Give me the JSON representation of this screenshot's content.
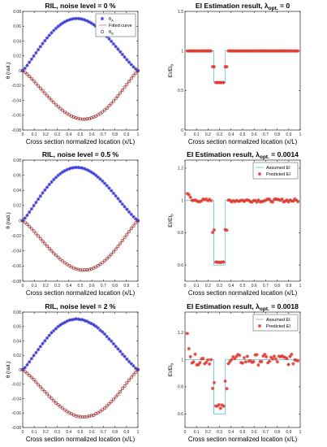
{
  "chart_data": [
    {
      "type": "scatter",
      "title": "RIL, noise level = 0 %",
      "xlabel": "Cross section normalized location (x/L)",
      "ylabel": "θ (rad.)",
      "xlim": [
        0,
        1
      ],
      "ylim": [
        -0.08,
        0.08
      ],
      "xticks": [
        "0",
        "0.1",
        "0.2",
        "0.3",
        "0.4",
        "0.5",
        "0.6",
        "0.7",
        "0.8",
        "0.9",
        "1"
      ],
      "yticks": [
        "-0.08",
        "-0.06",
        "-0.04",
        "-0.02",
        "0",
        "0.02",
        "0.04",
        "0.06",
        "0.08"
      ],
      "legend": {
        "position": "top-right",
        "entries": [
          "θA",
          "Fitted curve",
          "θB"
        ]
      },
      "noise": 0,
      "series": [
        {
          "name": "θA",
          "marker": "star",
          "color": "#3b3bd6",
          "peak_x": 0.42,
          "peak_y": 0.07
        },
        {
          "name": "Fitted curve",
          "marker": "line",
          "color": "#d9534f"
        },
        {
          "name": "θB",
          "marker": "circle",
          "color": "#8b2b2b",
          "peak_x": 0.58,
          "peak_y": -0.065
        }
      ]
    },
    {
      "type": "line",
      "title": "EI Estimation result, λopt. = 0",
      "xlabel": "Cross section normalized location (x/L)",
      "ylabel": "EI/EI0",
      "xlim": [
        0,
        1
      ],
      "ylim": [
        0,
        1.5
      ],
      "xticks": [
        "0",
        "0.1",
        "0.2",
        "0.3",
        "0.4",
        "0.5",
        "0.6",
        "0.7",
        "0.8",
        "0.9",
        "1"
      ],
      "yticks": [
        "0",
        "0.5",
        "1",
        "1.5"
      ],
      "legend": null,
      "assumed_ei": {
        "x": [
          0,
          0.25,
          0.25,
          0.35,
          0.35,
          1
        ],
        "y": [
          1,
          1,
          0.6,
          0.6,
          1,
          1
        ]
      },
      "predicted_ei": {
        "damage_start": 0.25,
        "damage_end": 0.35,
        "damage_level": 0.6,
        "noise": 0
      }
    },
    {
      "type": "scatter",
      "title": "RIL, noise level = 0.5 %",
      "xlabel": "Cross section normalized location (x/L)",
      "ylabel": "θ (rad.)",
      "xlim": [
        0,
        1
      ],
      "ylim": [
        -0.08,
        0.08
      ],
      "xticks": [
        "0",
        "0.1",
        "0.2",
        "0.3",
        "0.4",
        "0.5",
        "0.6",
        "0.7",
        "0.8",
        "0.9",
        "1"
      ],
      "yticks": [
        "-0.08",
        "-0.06",
        "-0.04",
        "-0.02",
        "0",
        "0.02",
        "0.04",
        "0.06",
        "0.08"
      ],
      "legend": null,
      "noise": 0.5,
      "series": [
        {
          "name": "θA",
          "marker": "star",
          "color": "#3b3bd6",
          "peak_x": 0.42,
          "peak_y": 0.07
        },
        {
          "name": "Fitted curve",
          "marker": "line",
          "color": "#d9534f"
        },
        {
          "name": "θB",
          "marker": "circle",
          "color": "#8b2b2b",
          "peak_x": 0.58,
          "peak_y": -0.065
        }
      ]
    },
    {
      "type": "line",
      "title": "EI Estimation result, λopt. = 0.0014",
      "xlabel": "Cross section normalized location (x/L)",
      "ylabel": "EI/EI0",
      "xlim": [
        0,
        1
      ],
      "ylim": [
        0.5,
        1.25
      ],
      "xticks": [
        "0",
        "0.1",
        "0.2",
        "0.3",
        "0.4",
        "0.5",
        "0.6",
        "0.7",
        "0.8",
        "0.9",
        "1"
      ],
      "yticks": [
        "0.6",
        "0.8",
        "1",
        "1.2"
      ],
      "legend": {
        "position": "top-right",
        "entries": [
          "Assumed EI",
          "Predicted EI"
        ]
      },
      "assumed_ei": {
        "x": [
          0,
          0.25,
          0.25,
          0.35,
          0.35,
          1
        ],
        "y": [
          1,
          1,
          0.6,
          0.6,
          1,
          1
        ]
      },
      "predicted_ei": {
        "damage_start": 0.25,
        "damage_end": 0.35,
        "damage_level": 0.62,
        "noise": 0.5
      }
    },
    {
      "type": "scatter",
      "title": "RIL, noise level = 2 %",
      "xlabel": "Cross section normalized location (x/L)",
      "ylabel": "θ (rad.)",
      "xlim": [
        0,
        1
      ],
      "ylim": [
        -0.08,
        0.08
      ],
      "xticks": [
        "0",
        "0.1",
        "0.2",
        "0.3",
        "0.4",
        "0.5",
        "0.6",
        "0.7",
        "0.8",
        "0.9",
        "1"
      ],
      "yticks": [
        "-0.08",
        "-0.06",
        "-0.04",
        "-0.02",
        "0",
        "0.02",
        "0.04",
        "0.06",
        "0.08"
      ],
      "legend": null,
      "noise": 2,
      "series": [
        {
          "name": "θA",
          "marker": "star",
          "color": "#3b3bd6",
          "peak_x": 0.42,
          "peak_y": 0.07
        },
        {
          "name": "Fitted curve",
          "marker": "line",
          "color": "#d9534f"
        },
        {
          "name": "θB",
          "marker": "circle",
          "color": "#8b2b2b",
          "peak_x": 0.58,
          "peak_y": -0.065
        }
      ]
    },
    {
      "type": "line",
      "title": "EI Estimation result, λopt. = 0.0018",
      "xlabel": "Cross section normalized location (x/L)",
      "ylabel": "EI/EI0",
      "xlim": [
        0,
        1
      ],
      "ylim": [
        0.5,
        1.35
      ],
      "xticks": [
        "0",
        "0.1",
        "0.2",
        "0.3",
        "0.4",
        "0.5",
        "0.6",
        "0.7",
        "0.8",
        "0.9",
        "1"
      ],
      "yticks": [
        "0.6",
        "0.8",
        "1",
        "1.2"
      ],
      "legend": {
        "position": "top-right",
        "entries": [
          "Assumed EI",
          "Predicted EI"
        ]
      },
      "assumed_ei": {
        "x": [
          0,
          0.25,
          0.25,
          0.35,
          0.35,
          1
        ],
        "y": [
          1,
          1,
          0.6,
          0.6,
          1,
          1
        ]
      },
      "predicted_ei": {
        "damage_start": 0.25,
        "damage_end": 0.35,
        "damage_level": 0.65,
        "noise": 2
      }
    }
  ],
  "colors": {
    "theta_a": "#3b3bd6",
    "theta_b": "#8b2b2b",
    "fitted": "#d9534f",
    "assumed": "#5bc0de",
    "predicted": "#e03c31",
    "axis": "#262626"
  }
}
